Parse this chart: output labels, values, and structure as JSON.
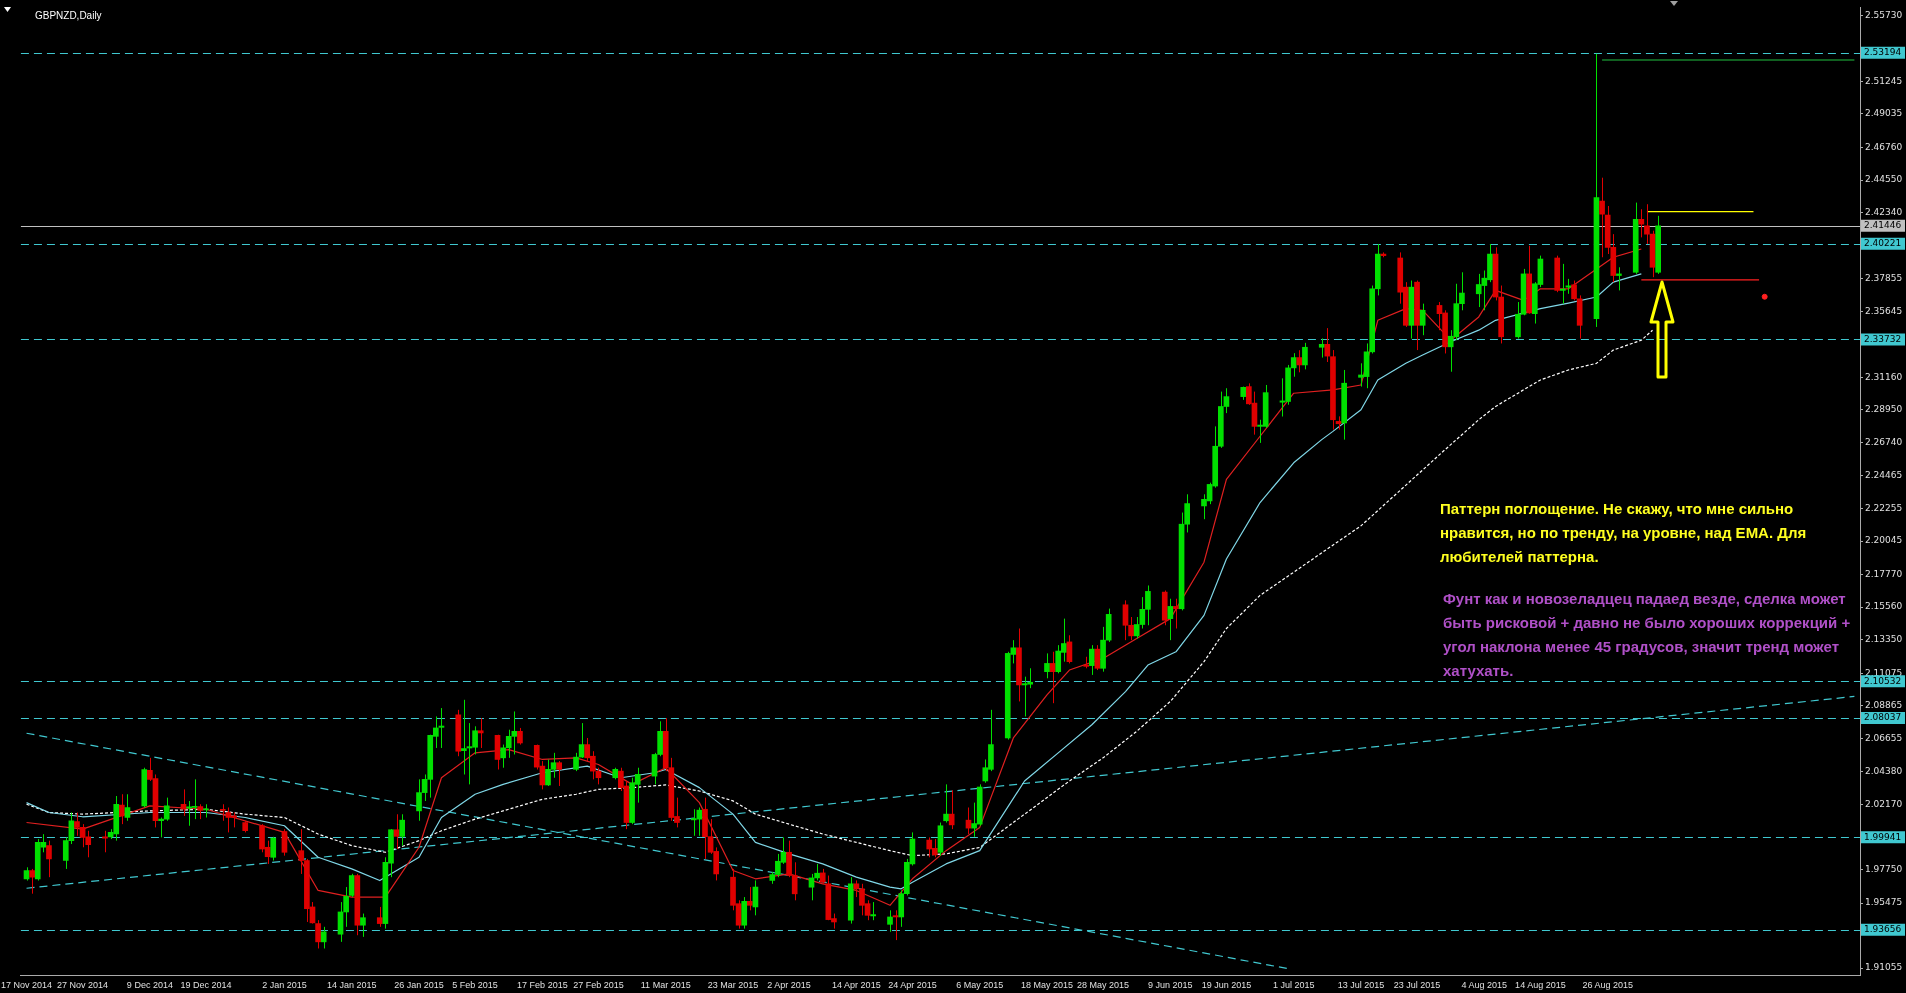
{
  "chart_data": {
    "type": "candlestick",
    "title": "GBPNZD,Daily",
    "annotations": [
      "Паттерн поглощение. Не скажу, что мне сильно нравится, но по тренду, на уровне, над ЕМА. Для любителей паттерна.",
      "Фунт как и новозеладцец падаед везде, сделка может быть рисковой + давно не было хороших коррекций + угол наклона менее 45 градусов, значит тренд может хатухать."
    ],
    "x": [
      "2014-11-17",
      "2014-11-18",
      "2014-11-19",
      "2014-11-20",
      "2014-11-21",
      "2014-11-24",
      "2014-11-25",
      "2014-11-26",
      "2014-11-27",
      "2014-11-28",
      "2014-12-01",
      "2014-12-02",
      "2014-12-03",
      "2014-12-04",
      "2014-12-05",
      "2014-12-08",
      "2014-12-09",
      "2014-12-10",
      "2014-12-11",
      "2014-12-12",
      "2014-12-15",
      "2014-12-16",
      "2014-12-17",
      "2014-12-18",
      "2014-12-19",
      "2014-12-22",
      "2014-12-23",
      "2014-12-24",
      "2014-12-26",
      "2014-12-29",
      "2014-12-30",
      "2014-12-31",
      "2015-01-02",
      "2015-01-05",
      "2015-01-06",
      "2015-01-07",
      "2015-01-08",
      "2015-01-09",
      "2015-01-12",
      "2015-01-13",
      "2015-01-14",
      "2015-01-15",
      "2015-01-16",
      "2015-01-19",
      "2015-01-20",
      "2015-01-21",
      "2015-01-22",
      "2015-01-23",
      "2015-01-26",
      "2015-01-27",
      "2015-01-28",
      "2015-01-29",
      "2015-01-30",
      "2015-02-02",
      "2015-02-03",
      "2015-02-04",
      "2015-02-05",
      "2015-02-06",
      "2015-02-09",
      "2015-02-10",
      "2015-02-11",
      "2015-02-12",
      "2015-02-13",
      "2015-02-16",
      "2015-02-17",
      "2015-02-18",
      "2015-02-19",
      "2015-02-20",
      "2015-02-23",
      "2015-02-24",
      "2015-02-25",
      "2015-02-26",
      "2015-02-27",
      "2015-03-02",
      "2015-03-03",
      "2015-03-04",
      "2015-03-05",
      "2015-03-06",
      "2015-03-09",
      "2015-03-10",
      "2015-03-11",
      "2015-03-12",
      "2015-03-13",
      "2015-03-16",
      "2015-03-17",
      "2015-03-18",
      "2015-03-19",
      "2015-03-20",
      "2015-03-23",
      "2015-03-24",
      "2015-03-25",
      "2015-03-26",
      "2015-03-27",
      "2015-03-30",
      "2015-03-31",
      "2015-04-01",
      "2015-04-02",
      "2015-04-03",
      "2015-04-06",
      "2015-04-07",
      "2015-04-08",
      "2015-04-09",
      "2015-04-10",
      "2015-04-13",
      "2015-04-14",
      "2015-04-15",
      "2015-04-16",
      "2015-04-17",
      "2015-04-20",
      "2015-04-21",
      "2015-04-22",
      "2015-04-23",
      "2015-04-24",
      "2015-04-27",
      "2015-04-28",
      "2015-04-29",
      "2015-04-30",
      "2015-05-01",
      "2015-05-04",
      "2015-05-05",
      "2015-05-06",
      "2015-05-07",
      "2015-05-08",
      "2015-05-11",
      "2015-05-12",
      "2015-05-13",
      "2015-05-14",
      "2015-05-15",
      "2015-05-18",
      "2015-05-19",
      "2015-05-20",
      "2015-05-21",
      "2015-05-22",
      "2015-05-25",
      "2015-05-26",
      "2015-05-27",
      "2015-05-28",
      "2015-05-29",
      "2015-06-01",
      "2015-06-02",
      "2015-06-03",
      "2015-06-04",
      "2015-06-05",
      "2015-06-08",
      "2015-06-09",
      "2015-06-10",
      "2015-06-11",
      "2015-06-12",
      "2015-06-15",
      "2015-06-16",
      "2015-06-17",
      "2015-06-18",
      "2015-06-19",
      "2015-06-22",
      "2015-06-23",
      "2015-06-24",
      "2015-06-25",
      "2015-06-26",
      "2015-06-29",
      "2015-06-30",
      "2015-07-01",
      "2015-07-02",
      "2015-07-03",
      "2015-07-06",
      "2015-07-07",
      "2015-07-08",
      "2015-07-09",
      "2015-07-10",
      "2015-07-13",
      "2015-07-14",
      "2015-07-15",
      "2015-07-16",
      "2015-07-17",
      "2015-07-20",
      "2015-07-21",
      "2015-07-22",
      "2015-07-23",
      "2015-07-24",
      "2015-07-27",
      "2015-07-28",
      "2015-07-29",
      "2015-07-30",
      "2015-07-31",
      "2015-08-03",
      "2015-08-04",
      "2015-08-05",
      "2015-08-06",
      "2015-08-07",
      "2015-08-10",
      "2015-08-11",
      "2015-08-12",
      "2015-08-13",
      "2015-08-14",
      "2015-08-17",
      "2015-08-18",
      "2015-08-19",
      "2015-08-20",
      "2015-08-21",
      "2015-08-24",
      "2015-08-25",
      "2015-08-26",
      "2015-08-27",
      "2015-08-28",
      "2015-08-31",
      "2015-09-01",
      "2015-09-02",
      "2015-09-03",
      "2015-09-04"
    ],
    "ohlc": [
      [
        1.9712,
        1.979,
        1.97,
        1.9768
      ],
      [
        1.9768,
        1.9779,
        1.9611,
        1.9723
      ],
      [
        1.9712,
        1.9982,
        1.97,
        1.9959
      ],
      [
        1.9926,
        2.0015,
        1.9892,
        1.9959
      ],
      [
        1.9937,
        1.9971,
        1.9723,
        1.9847
      ],
      [
        1.9836,
        1.9993,
        1.9779,
        1.9971
      ],
      [
        1.9971,
        2.0162,
        1.9948,
        2.0106
      ],
      [
        2.0101,
        2.0162,
        2.0004,
        2.0061
      ],
      [
        2.0061,
        2.0083,
        1.9926,
        1.9993
      ],
      [
        1.9997,
        2.0038,
        1.9858,
        1.9943
      ],
      [
        1.9997,
        2.0038,
        1.9892,
        1.9988
      ],
      [
        1.9997,
        2.0049,
        1.9982,
        2.0027
      ],
      [
        2.0016,
        2.0274,
        1.9971,
        2.0218
      ],
      [
        2.0213,
        2.0286,
        2.0083,
        2.0139
      ],
      [
        2.0128,
        2.0286,
        2.0106,
        2.0196
      ],
      [
        2.0207,
        2.0466,
        2.0196,
        2.0454
      ],
      [
        2.0448,
        2.0533,
        2.0376,
        2.0387
      ],
      [
        2.0393,
        2.042,
        2.0061,
        2.0106
      ],
      [
        2.0106,
        2.0128,
        1.9993,
        2.0117
      ],
      [
        2.0117,
        2.0263,
        2.0106,
        2.0207
      ],
      [
        2.0218,
        2.0319,
        2.0139,
        2.0184
      ],
      [
        2.0191,
        2.024,
        2.0072,
        2.02
      ],
      [
        2.0196,
        2.0387,
        2.0117,
        2.0204
      ],
      [
        2.0202,
        2.0218,
        2.0117,
        2.0177
      ],
      [
        2.018,
        2.0218,
        2.0128,
        2.0186
      ],
      [
        2.0184,
        2.0218,
        2.0106,
        2.0177
      ],
      [
        2.0162,
        2.0196,
        2.0027,
        2.0128
      ],
      [
        2.0139,
        2.0162,
        2.0061,
        2.0128
      ],
      [
        2.0094,
        2.0106,
        2.0027,
        2.0038
      ],
      [
        2.0072,
        2.0083,
        1.9892,
        1.9914
      ],
      [
        1.9926,
        1.9971,
        1.9813,
        1.9862
      ],
      [
        1.9858,
        1.9997,
        1.9836,
        1.9988
      ],
      [
        2.0033,
        2.0049,
        1.9869,
        1.9892
      ],
      [
        1.9903,
        2.0049,
        1.9745,
        1.9836
      ],
      [
        1.9836,
        1.9847,
        1.9419,
        1.9509
      ],
      [
        1.9521,
        1.9554,
        1.9408,
        1.9413
      ],
      [
        1.9408,
        1.9431,
        1.9239,
        1.9284
      ],
      [
        1.9284,
        1.9386,
        1.9239,
        1.9352
      ],
      [
        1.9336,
        1.9554,
        1.9284,
        1.9487
      ],
      [
        1.9487,
        1.9656,
        1.9386,
        1.9593
      ],
      [
        1.9599,
        1.9746,
        1.9588,
        1.9734
      ],
      [
        1.9734,
        1.9746,
        1.9329,
        1.9397
      ],
      [
        1.9397,
        1.9476,
        1.9318,
        1.9448
      ],
      [
        1.9448,
        1.9521,
        1.9386,
        1.9408
      ],
      [
        1.9408,
        1.9858,
        1.9374,
        1.9824
      ],
      [
        1.9818,
        2.0049,
        1.9723,
        2.0045
      ],
      [
        2.0045,
        2.015,
        1.9914,
        2.0
      ],
      [
        2.0,
        2.015,
        1.9937,
        2.011
      ],
      [
        2.0173,
        2.0387,
        2.0106,
        2.0297
      ],
      [
        2.0297,
        2.042,
        2.024,
        2.0387
      ],
      [
        2.0387,
        2.069,
        2.0263,
        2.0686
      ],
      [
        2.0679,
        2.0814,
        2.06,
        2.0736
      ],
      [
        2.074,
        2.0871,
        2.06,
        2.0749
      ],
      [
        2.0825,
        2.0859,
        2.0544,
        2.0578
      ],
      [
        2.0582,
        2.0927,
        2.042,
        2.0596
      ],
      [
        2.06,
        2.0769,
        2.0353,
        2.0609
      ],
      [
        2.0605,
        2.0747,
        2.0556,
        2.0717
      ],
      [
        2.0717,
        2.0803,
        2.06,
        2.0702
      ],
      [
        2.0686,
        2.069,
        2.0454,
        2.0522
      ],
      [
        2.0533,
        2.0623,
        2.0466,
        2.0601
      ],
      [
        2.0601,
        2.0724,
        2.0533,
        2.0679
      ],
      [
        2.0679,
        2.0848,
        2.0556,
        2.0713
      ],
      [
        2.0713,
        2.0736,
        2.0623,
        2.0634
      ],
      [
        2.0618,
        2.0623,
        2.0454,
        2.047
      ],
      [
        2.0477,
        2.0511,
        2.0319,
        2.0349
      ],
      [
        2.0349,
        2.0522,
        2.0342,
        2.0455
      ],
      [
        2.0455,
        2.0567,
        2.0398,
        2.05
      ],
      [
        2.05,
        2.0511,
        2.0342,
        2.0455
      ],
      [
        2.0455,
        2.0567,
        2.0443,
        2.0538
      ],
      [
        2.0538,
        2.0769,
        2.0533,
        2.0623
      ],
      [
        2.0623,
        2.0668,
        2.0511,
        2.0533
      ],
      [
        2.0544,
        2.0578,
        2.0387,
        2.0443
      ],
      [
        2.0443,
        2.0466,
        2.0353,
        2.0398
      ],
      [
        2.0398,
        2.0466,
        2.0387,
        2.0455
      ],
      [
        2.0443,
        2.0466,
        2.0308,
        2.0331
      ],
      [
        2.0342,
        2.0376,
        2.0049,
        2.0094
      ],
      [
        2.0094,
        2.0398,
        2.0083,
        2.0364
      ],
      [
        2.0353,
        2.0466,
        2.0229,
        2.0421
      ],
      [
        2.0409,
        2.0567,
        2.0353,
        2.0556
      ],
      [
        2.0556,
        2.0781,
        2.0544,
        2.0713
      ],
      [
        2.0713,
        2.0803,
        2.0443,
        2.0466
      ],
      [
        2.0466,
        2.0533,
        2.0106,
        2.0128
      ],
      [
        2.0135,
        2.0263,
        2.0061,
        2.0094
      ],
      [
        2.0112,
        2.0184,
        2.0004,
        2.0121
      ],
      [
        2.0117,
        2.0196,
        2.0004,
        2.0178
      ],
      [
        2.0184,
        2.0263,
        1.9847,
        1.9998
      ],
      [
        1.9998,
        2.0117,
        1.9881,
        1.9892
      ],
      [
        1.9898,
        1.9925,
        1.9701,
        1.9745
      ],
      [
        1.9723,
        1.9779,
        1.9498,
        1.9532
      ],
      [
        1.9543,
        1.9566,
        1.9374,
        1.9397
      ],
      [
        1.9397,
        1.9588,
        1.9374,
        1.9559
      ],
      [
        1.9559,
        1.9656,
        1.9498,
        1.9532
      ],
      [
        1.9521,
        1.9701,
        1.9464,
        1.9656
      ],
      [
        1.9701,
        1.9757,
        1.9678,
        1.9741
      ],
      [
        1.9741,
        1.9881,
        1.9723,
        1.9831
      ],
      [
        1.9824,
        1.9993,
        1.9813,
        1.9892
      ],
      [
        1.9892,
        1.9971,
        1.9723,
        1.9734
      ],
      [
        1.9734,
        1.9824,
        1.9566,
        1.961
      ],
      [
        1.9655,
        1.9745,
        1.9566,
        1.9718
      ],
      [
        1.9718,
        1.9813,
        1.9701,
        1.975
      ],
      [
        1.9752,
        1.9779,
        1.9678,
        1.9689
      ],
      [
        1.9678,
        1.9734,
        1.9431,
        1.9435
      ],
      [
        1.9442,
        1.9476,
        1.9374,
        1.9419
      ],
      [
        1.9431,
        1.9723,
        1.9408,
        1.9678
      ],
      [
        1.9678,
        1.9701,
        1.9588,
        1.9644
      ],
      [
        1.9644,
        1.9678,
        1.9464,
        1.9532
      ],
      [
        1.9543,
        1.9566,
        1.9431,
        1.9464
      ],
      [
        1.946,
        1.9554,
        1.9431,
        1.9469
      ],
      [
        1.9403,
        1.9498,
        1.9352,
        1.9453
      ],
      [
        1.9462,
        1.9498,
        1.9296,
        1.9453
      ],
      [
        1.9453,
        1.9633,
        1.9386,
        1.9611
      ],
      [
        1.9611,
        1.9847,
        1.9599,
        1.9824
      ],
      [
        1.9813,
        2.0027,
        1.9802,
        1.9982
      ],
      [
        1.9975,
        1.9993,
        1.9858,
        1.9914
      ],
      [
        1.9919,
        1.9982,
        1.9858,
        1.9874
      ],
      [
        1.9892,
        2.0094,
        1.9869,
        2.0072
      ],
      [
        2.0106,
        2.0353,
        2.0094,
        2.0151
      ],
      [
        2.0151,
        2.0313,
        2.0049,
        2.0078
      ],
      [
        2.011,
        2.0196,
        2.0016,
        2.0056
      ],
      [
        2.0056,
        2.0229,
        1.9997,
        2.0087
      ],
      [
        2.0083,
        2.0353,
        2.0072,
        2.0335
      ],
      [
        2.0376,
        2.0522,
        2.0364,
        2.0466
      ],
      [
        2.0455,
        2.0859,
        2.0443,
        2.0623
      ],
      [
        2.0668,
        2.1253,
        2.0657,
        2.1242
      ],
      [
        2.1235,
        2.1332,
        2.1174,
        2.128
      ],
      [
        2.128,
        2.1411,
        2.0916,
        2.1028
      ],
      [
        2.1028,
        2.1084,
        2.0814,
        2.1037
      ],
      [
        2.1033,
        2.1141,
        2.1006,
        2.1046
      ],
      [
        2.1118,
        2.1242,
        2.1073,
        2.1174
      ],
      [
        2.1174,
        2.1253,
        2.0904,
        2.1118
      ],
      [
        2.1118,
        2.1298,
        2.1107,
        2.1258
      ],
      [
        2.1249,
        2.1478,
        2.1186,
        2.1309
      ],
      [
        2.132,
        2.1365,
        2.1174,
        2.1186
      ],
      [
        2.1163,
        2.1219,
        2.1141,
        2.1154
      ],
      [
        2.1159,
        2.1298,
        2.1096,
        2.1271
      ],
      [
        2.1271,
        2.1298,
        2.1129,
        2.1141
      ],
      [
        2.1141,
        2.1422,
        2.1118,
        2.1332
      ],
      [
        2.1332,
        2.1546,
        2.132,
        2.1507
      ],
      [
        2.1572,
        2.1602,
        2.1332,
        2.1433
      ],
      [
        2.1433,
        2.1489,
        2.1332,
        2.1361
      ],
      [
        2.1361,
        2.1489,
        2.1343,
        2.1438
      ],
      [
        2.1438,
        2.1624,
        2.1411,
        2.1541
      ],
      [
        2.1541,
        2.1703,
        2.1433,
        2.1663
      ],
      [
        2.1658,
        2.1669,
        2.1433,
        2.1467
      ],
      [
        2.1478,
        2.1613,
        2.1332,
        2.1561
      ],
      [
        2.1561,
        2.1613,
        2.1411,
        2.1545
      ],
      [
        2.1545,
        2.2198,
        2.1534,
        2.2119
      ],
      [
        2.2119,
        2.2322,
        2.2063,
        2.2259
      ],
      [
        2.2243,
        2.2322,
        2.2153,
        2.2288
      ],
      [
        2.2277,
        2.2401,
        2.2255,
        2.2389
      ],
      [
        2.2378,
        2.2783,
        2.2367,
        2.2648
      ],
      [
        2.2648,
        2.3019,
        2.2637,
        2.2918
      ],
      [
        2.2918,
        2.3042,
        2.2873,
        2.2985
      ],
      [
        2.2985,
        2.3053,
        2.2963,
        2.3048
      ],
      [
        2.3053,
        2.3075,
        2.2929,
        2.2936
      ],
      [
        2.2941,
        2.3019,
        2.2727,
        2.2783
      ],
      [
        2.2783,
        2.2828,
        2.2671,
        2.2792
      ],
      [
        2.2783,
        2.3064,
        2.2772,
        2.3012
      ],
      [
        2.2947,
        2.3109,
        2.285,
        2.2956
      ],
      [
        2.2952,
        2.32,
        2.293,
        2.318
      ],
      [
        2.318,
        2.328,
        2.312,
        2.325
      ],
      [
        2.325,
        2.33,
        2.315,
        2.32
      ],
      [
        2.32,
        2.335,
        2.317,
        2.332
      ],
      [
        2.332,
        2.338,
        2.325,
        2.334
      ],
      [
        2.334,
        2.345,
        2.322,
        2.326
      ],
      [
        2.3256,
        2.3301,
        2.2761,
        2.2828
      ],
      [
        2.2817,
        2.2851,
        2.2761,
        2.2801
      ],
      [
        2.2806,
        2.3166,
        2.2693,
        2.3076
      ],
      [
        2.3116,
        2.3211,
        2.3053,
        2.3132
      ],
      [
        2.3121,
        2.3346,
        2.3042,
        2.3289
      ],
      [
        2.3289,
        2.3739,
        2.3278,
        2.3717
      ],
      [
        2.3717,
        2.4021,
        2.3672,
        2.3953
      ],
      [
        2.3953,
        2.3964,
        2.3931,
        2.3942
      ],
      [
        2.3926,
        2.3964,
        2.3616,
        2.3694
      ],
      [
        2.3728,
        2.3762,
        2.3458,
        2.3469
      ],
      [
        2.3469,
        2.3773,
        2.3379,
        2.3728
      ],
      [
        2.3762,
        2.3773,
        2.3301,
        2.3469
      ],
      [
        2.3469,
        2.3616,
        2.3402,
        2.3571
      ],
      [
        2.3604,
        2.3627,
        2.3436,
        2.3548
      ],
      [
        2.3553,
        2.3571,
        2.3278,
        2.3323
      ],
      [
        2.3323,
        2.3436,
        2.3154,
        2.3395
      ],
      [
        2.3391,
        2.3751,
        2.3368,
        2.3616
      ],
      [
        2.3616,
        2.3829,
        2.3571,
        2.3688
      ],
      [
        2.3683,
        2.3818,
        2.3593,
        2.3746
      ],
      [
        2.3739,
        2.3841,
        2.3571,
        2.3789
      ],
      [
        2.3778,
        2.4021,
        2.3762,
        2.3953
      ],
      [
        2.3953,
        2.3998,
        2.3638,
        2.3661
      ],
      [
        2.3661,
        2.3739,
        2.3346,
        2.3391
      ],
      [
        2.3391,
        2.3627,
        2.3379,
        2.3544
      ],
      [
        2.3544,
        2.3852,
        2.3537,
        2.3818
      ],
      [
        2.3818,
        2.4009,
        2.3548,
        2.3553
      ],
      [
        2.3548,
        2.3762,
        2.3481,
        2.3751
      ],
      [
        2.3746,
        2.3942,
        2.3728,
        2.3919
      ],
      [
        2.3926,
        2.3942,
        2.3694,
        2.3706
      ],
      [
        2.3706,
        2.3886,
        2.3616,
        2.3715
      ],
      [
        2.3728,
        2.3784,
        2.3683,
        2.3737
      ],
      [
        2.3744,
        2.3773,
        2.3638,
        2.3649
      ],
      [
        2.3649,
        2.3672,
        2.3379,
        2.3469
      ],
      [
        2.3514,
        2.5312,
        2.3458,
        2.4336
      ],
      [
        2.4313,
        2.4471,
        2.3931,
        2.4223
      ],
      [
        2.4218,
        2.4279,
        2.3953,
        2.3998
      ],
      [
        2.3998,
        2.4088,
        2.3762,
        2.3807
      ],
      [
        2.3807,
        2.3863,
        2.3706,
        2.3818
      ],
      [
        2.3829,
        2.4302,
        2.3818,
        2.4189
      ],
      [
        2.4189,
        2.4257,
        2.4066,
        2.4156
      ],
      [
        2.4144,
        2.4291,
        2.4021,
        2.4088
      ],
      [
        2.4088,
        2.4111,
        2.3796,
        2.3863
      ],
      [
        2.3829,
        2.4212,
        2.3818,
        2.4144
      ]
    ],
    "colors": [
      "#00e000",
      "#e00000",
      "#00e000",
      "#00e000",
      "#e00000",
      "#00e000",
      "#00e000",
      "#e00000",
      "#e00000",
      "#e00000",
      "#e00000",
      "#00e000",
      "#00e000",
      "#e00000",
      "#00e000",
      "#00e000",
      "#e00000",
      "#e00000",
      "#00e000",
      "#00e000",
      "#e00000",
      "#00e000",
      "#00e000",
      "#e00000",
      "#00e000",
      "#e00000",
      "#e00000",
      "#e00000",
      "#e00000",
      "#e00000",
      "#e00000",
      "#00e000",
      "#e00000",
      "#e00000",
      "#e00000",
      "#e00000",
      "#e00000",
      "#00e000",
      "#00e000",
      "#00e000",
      "#00e000",
      "#e00000",
      "#00e000",
      "#e00000",
      "#00e000",
      "#00e000",
      "#e00000",
      "#00e000",
      "#00e000",
      "#00e000",
      "#00e000",
      "#00e000",
      "#00e000",
      "#e00000",
      "#00e000",
      "#00e000",
      "#00e000",
      "#e00000",
      "#e00000",
      "#00e000",
      "#00e000",
      "#00e000",
      "#e00000",
      "#e00000",
      "#e00000",
      "#00e000",
      "#00e000",
      "#e00000",
      "#00e000",
      "#00e000",
      "#e00000",
      "#e00000",
      "#e00000",
      "#00e000",
      "#e00000",
      "#e00000",
      "#00e000",
      "#00e000",
      "#00e000",
      "#00e000",
      "#e00000",
      "#e00000",
      "#e00000",
      "#00e000",
      "#00e000",
      "#e00000",
      "#e00000",
      "#e00000",
      "#e00000",
      "#e00000",
      "#00e000",
      "#e00000",
      "#00e000",
      "#00e000",
      "#00e000",
      "#00e000",
      "#e00000",
      "#e00000",
      "#00e000",
      "#00e000",
      "#e00000",
      "#e00000",
      "#e00000",
      "#00e000",
      "#e00000",
      "#e00000",
      "#e00000",
      "#00e000",
      "#00e000",
      "#e00000",
      "#00e000",
      "#00e000",
      "#00e000",
      "#e00000",
      "#e00000",
      "#00e000",
      "#00e000",
      "#e00000",
      "#e00000",
      "#00e000",
      "#00e000",
      "#00e000",
      "#00e000",
      "#00e000",
      "#00e000",
      "#e00000",
      "#00e000",
      "#00e000",
      "#00e000",
      "#e00000",
      "#00e000",
      "#00e000",
      "#e00000",
      "#e00000",
      "#00e000",
      "#e00000",
      "#00e000",
      "#00e000",
      "#e00000",
      "#e00000",
      "#00e000",
      "#00e000",
      "#00e000",
      "#e00000",
      "#00e000",
      "#e00000",
      "#00e000",
      "#00e000",
      "#00e000",
      "#00e000",
      "#00e000",
      "#00e000",
      "#00e000",
      "#00e000",
      "#e00000",
      "#e00000",
      "#00e000",
      "#00e000",
      "#00e000",
      "#00e000",
      "#00e000",
      "#e00000",
      "#00e000",
      "#00e000",
      "#e00000",
      "#e00000",
      "#e00000",
      "#00e000",
      "#00e000",
      "#00e000",
      "#00e000",
      "#00e000",
      "#e00000",
      "#e00000",
      "#e00000",
      "#00e000",
      "#e00000",
      "#00e000",
      "#e00000",
      "#e00000",
      "#00e000",
      "#00e000",
      "#00e000",
      "#00e000",
      "#00e000",
      "#00e000",
      "#e00000",
      "#e00000",
      "#00e000",
      "#00e000",
      "#e00000",
      "#00e000",
      "#00e000",
      "#e00000",
      "#00e000",
      "#00e000",
      "#e00000",
      "#e00000",
      "#00e000",
      "#e00000",
      "#e00000",
      "#e00000",
      "#00e000",
      "#00e000",
      "#e00000",
      "#e00000",
      "#e00000",
      "#00e000"
    ],
    "series": [
      {
        "type": "line",
        "color": "#e02020",
        "line_style": "solid",
        "marker": "none",
        "x": [
          "2014-11-17",
          "2014-11-27",
          "2014-12-09",
          "2014-12-19",
          "2015-01-02",
          "2015-01-08",
          "2015-01-14",
          "2015-01-20",
          "2015-01-26",
          "2015-01-30",
          "2015-02-05",
          "2015-02-11",
          "2015-02-17",
          "2015-02-23",
          "2015-02-27",
          "2015-03-05",
          "2015-03-11",
          "2015-03-17",
          "2015-03-23",
          "2015-03-27",
          "2015-04-02",
          "2015-04-08",
          "2015-04-14",
          "2015-04-20",
          "2015-04-24",
          "2015-04-30",
          "2015-05-06",
          "2015-05-12",
          "2015-05-18",
          "2015-05-22",
          "2015-05-28",
          "2015-06-03",
          "2015-06-09",
          "2015-06-15",
          "2015-06-19",
          "2015-06-25",
          "2015-07-01",
          "2015-07-08",
          "2015-07-13",
          "2015-07-16",
          "2015-07-21",
          "2015-07-24",
          "2015-07-29",
          "2015-08-03",
          "2015-08-06",
          "2015-08-11",
          "2015-08-14",
          "2015-08-19",
          "2015-08-27",
          "2015-09-01"
        ],
        "values": [
          2.0094,
          2.0049,
          2.0207,
          2.0184,
          2.0027,
          1.9633,
          1.9588,
          1.9588,
          1.9926,
          2.0398,
          2.0567,
          2.0589,
          2.0522,
          2.0533,
          2.0488,
          2.0353,
          2.0466,
          2.0229,
          1.9768,
          1.9712,
          1.9745,
          1.9678,
          1.9633,
          1.9532,
          1.9712,
          1.9903,
          2.0061,
          2.0668,
          2.0961,
          2.1129,
          2.1208,
          2.1343,
          2.1478,
          2.1861,
          2.2423,
          2.2716,
          2.3008,
          2.3031,
          2.3064,
          2.3503,
          2.3582,
          2.3571,
          2.3368,
          2.3526,
          2.3706,
          2.3638,
          2.3717,
          2.3717,
          2.3931,
          2.3987
        ]
      },
      {
        "type": "line",
        "color": "#80d8e8",
        "line_style": "solid",
        "marker": "none",
        "x": [
          "2014-11-17",
          "2014-11-21",
          "2014-11-27",
          "2014-12-09",
          "2014-12-19",
          "2014-12-26",
          "2015-01-02",
          "2015-01-08",
          "2015-01-14",
          "2015-01-19",
          "2015-01-26",
          "2015-01-30",
          "2015-02-05",
          "2015-02-10",
          "2015-02-17",
          "2015-02-25",
          "2015-03-03",
          "2015-03-09",
          "2015-03-11",
          "2015-03-17",
          "2015-03-23",
          "2015-03-27",
          "2015-04-02",
          "2015-04-08",
          "2015-04-14",
          "2015-04-20",
          "2015-04-22",
          "2015-04-24",
          "2015-04-30",
          "2015-05-06",
          "2015-05-14",
          "2015-05-20",
          "2015-05-26",
          "2015-06-01",
          "2015-06-05",
          "2015-06-10",
          "2015-06-15",
          "2015-06-19",
          "2015-06-25",
          "2015-07-01",
          "2015-07-06",
          "2015-07-08",
          "2015-07-13",
          "2015-07-16",
          "2015-07-21",
          "2015-07-24",
          "2015-07-29",
          "2015-08-03",
          "2015-08-06",
          "2015-08-14",
          "2015-08-19",
          "2015-08-24",
          "2015-08-27",
          "2015-09-01"
        ],
        "values": [
          2.0229,
          2.0162,
          2.0133,
          2.0162,
          2.0162,
          2.0128,
          2.0072,
          1.9858,
          1.9779,
          1.97,
          1.9858,
          2.0128,
          2.0286,
          2.0353,
          2.0432,
          2.0477,
          2.0398,
          2.0432,
          2.0454,
          2.0331,
          2.0151,
          1.9959,
          1.9881,
          1.9813,
          1.9723,
          1.9656,
          1.9644,
          1.9689,
          1.9813,
          1.9903,
          2.0376,
          2.0567,
          2.0758,
          2.0983,
          2.1163,
          2.1253,
          2.15,
          2.1883,
          2.2266,
          2.2536,
          2.2693,
          2.2749,
          2.2896,
          2.3098,
          2.3211,
          2.3267,
          2.3357,
          2.3436,
          2.3503,
          2.3582,
          2.362,
          2.3661,
          2.3762,
          2.3818
        ]
      },
      {
        "type": "line",
        "color": "#ffffff",
        "line_style": "dotted",
        "marker": "none",
        "x": [
          "2014-11-17",
          "2014-11-21",
          "2014-11-27",
          "2014-12-09",
          "2014-12-19",
          "2014-12-26",
          "2015-01-02",
          "2015-01-08",
          "2015-01-14",
          "2015-01-20",
          "2015-01-26",
          "2015-01-30",
          "2015-02-05",
          "2015-02-10",
          "2015-02-17",
          "2015-02-23",
          "2015-02-27",
          "2015-03-05",
          "2015-03-11",
          "2015-03-17",
          "2015-03-23",
          "2015-03-27",
          "2015-04-02",
          "2015-04-08",
          "2015-04-14",
          "2015-04-20",
          "2015-04-24",
          "2015-04-30",
          "2015-05-06",
          "2015-05-22",
          "2015-05-28",
          "2015-06-03",
          "2015-06-09",
          "2015-06-15",
          "2015-06-19",
          "2015-06-25",
          "2015-07-01",
          "2015-07-07",
          "2015-07-13",
          "2015-07-28",
          "2015-08-03",
          "2015-08-06",
          "2015-08-11",
          "2015-08-14",
          "2015-08-19",
          "2015-08-24",
          "2015-08-27",
          "2015-09-01",
          "2015-09-03"
        ],
        "values": [
          2.0218,
          2.0162,
          2.0151,
          2.0173,
          2.0184,
          2.0151,
          2.0128,
          2.0016,
          1.9937,
          1.9892,
          1.9971,
          2.0038,
          2.0117,
          2.0173,
          2.0252,
          2.0286,
          2.0319,
          2.0331,
          2.0349,
          2.0308,
          2.0241,
          2.0151,
          2.0083,
          2.0016,
          1.9959,
          1.9903,
          1.9869,
          1.9881,
          1.9925,
          2.0376,
          2.0533,
          2.0713,
          2.0916,
          2.1186,
          2.1411,
          2.1636,
          2.1793,
          2.1951,
          2.2108,
          2.2625,
          2.2828,
          2.2918,
          2.3031,
          2.3098,
          2.3166,
          2.3211,
          2.3301,
          2.3368,
          2.3436
        ]
      },
      {
        "type": "line",
        "color": "#40c8d0",
        "line_style": "dashed",
        "marker": "none",
        "x": [
          "2014-11-17",
          "2015-06-30"
        ],
        "values": [
          2.07,
          1.9102
        ]
      },
      {
        "type": "line",
        "color": "#40c8d0",
        "line_style": "dashed",
        "marker": "none",
        "x": [
          "2014-11-17",
          "2015-10-09"
        ],
        "values": [
          1.9648,
          2.095
        ]
      },
      {
        "type": "line",
        "color": "#20c040",
        "line_style": "solid",
        "marker": "none",
        "x": [
          "2015-08-25",
          "2015-10-09"
        ],
        "values": [
          2.527,
          2.527
        ]
      },
      {
        "type": "line",
        "color": "#ffff00",
        "line_style": "solid",
        "marker": "none",
        "x": [
          "2015-09-02",
          "2015-09-21"
        ],
        "values": [
          2.4241,
          2.4241
        ]
      },
      {
        "type": "line",
        "color": "#ff2020",
        "line_style": "solid",
        "marker": "none",
        "x": [
          "2015-09-01",
          "2015-09-22"
        ],
        "values": [
          2.3777,
          2.3777
        ]
      },
      {
        "type": "scatter",
        "color": "#ff2020",
        "marker": "circle",
        "x": [
          "2015-09-23"
        ],
        "values": [
          2.3663
        ]
      }
    ],
    "ref_lines": [
      {
        "axis": "y",
        "value": 2.53194,
        "label": "2.53194",
        "color": "#40c8d0",
        "line_style": "dashed"
      },
      {
        "axis": "y",
        "value": 2.41446,
        "label": "2.41446",
        "color": "#c0c0c0",
        "line_style": "solid"
      },
      {
        "axis": "y",
        "value": 2.40221,
        "label": "2.40221",
        "color": "#40c8d0",
        "line_style": "dashed"
      },
      {
        "axis": "y",
        "value": 2.33732,
        "label": "2.33732",
        "color": "#40c8d0",
        "line_style": "dashed"
      },
      {
        "axis": "y",
        "value": 2.10532,
        "label": "2.10532",
        "color": "#40c8d0",
        "line_style": "dashed"
      },
      {
        "axis": "y",
        "value": 2.08037,
        "label": "2.08037",
        "color": "#40c8d0",
        "line_style": "dashed"
      },
      {
        "axis": "y",
        "value": 1.99941,
        "label": "1.99941",
        "color": "#40c8d0",
        "line_style": "dashed"
      },
      {
        "axis": "y",
        "value": 1.93656,
        "label": "1.93656",
        "color": "#40c8d0",
        "line_style": "dashed"
      }
    ],
    "xlim": [
      "2014-11-16",
      "2015-10-10"
    ],
    "xticks": [
      {
        "value": "2014-11-17",
        "label": "17 Nov 2014"
      },
      {
        "value": "2014-11-27",
        "label": "27 Nov 2014"
      },
      {
        "value": "2014-12-09",
        "label": "9 Dec 2014"
      },
      {
        "value": "2014-12-19",
        "label": "19 Dec 2014"
      },
      {
        "value": "2015-01-02",
        "label": "2 Jan 2015"
      },
      {
        "value": "2015-01-14",
        "label": "14 Jan 2015"
      },
      {
        "value": "2015-01-26",
        "label": "26 Jan 2015"
      },
      {
        "value": "2015-02-05",
        "label": "5 Feb 2015"
      },
      {
        "value": "2015-02-17",
        "label": "17 Feb 2015"
      },
      {
        "value": "2015-02-27",
        "label": "27 Feb 2015"
      },
      {
        "value": "2015-03-11",
        "label": "11 Mar 2015"
      },
      {
        "value": "2015-03-23",
        "label": "23 Mar 2015"
      },
      {
        "value": "2015-04-02",
        "label": "2 Apr 2015"
      },
      {
        "value": "2015-04-14",
        "label": "14 Apr 2015"
      },
      {
        "value": "2015-04-24",
        "label": "24 Apr 2015"
      },
      {
        "value": "2015-05-06",
        "label": "6 May 2015"
      },
      {
        "value": "2015-05-18",
        "label": "18 May 2015"
      },
      {
        "value": "2015-05-28",
        "label": "28 May 2015"
      },
      {
        "value": "2015-06-09",
        "label": "9 Jun 2015"
      },
      {
        "value": "2015-06-19",
        "label": "19 Jun 2015"
      },
      {
        "value": "2015-07-01",
        "label": "1 Jul 2015"
      },
      {
        "value": "2015-07-13",
        "label": "13 Jul 2015"
      },
      {
        "value": "2015-07-23",
        "label": "23 Jul 2015"
      },
      {
        "value": "2015-08-04",
        "label": "4 Aug 2015"
      },
      {
        "value": "2015-08-14",
        "label": "14 Aug 2015"
      },
      {
        "value": "2015-08-26",
        "label": "26 Aug 2015"
      }
    ],
    "ylim": [
      1.9059,
      2.5627
    ],
    "yticks": [
      {
        "value": 2.5573,
        "label": "2.55730"
      },
      {
        "value": 2.51245,
        "label": "2.51245"
      },
      {
        "value": 2.49035,
        "label": "2.49035"
      },
      {
        "value": 2.4676,
        "label": "2.46760"
      },
      {
        "value": 2.4455,
        "label": "2.44550"
      },
      {
        "value": 2.4234,
        "label": "2.42340"
      },
      {
        "value": 2.37855,
        "label": "2.37855"
      },
      {
        "value": 2.35645,
        "label": "2.35645"
      },
      {
        "value": 2.3116,
        "label": "2.31160"
      },
      {
        "value": 2.2895,
        "label": "2.28950"
      },
      {
        "value": 2.2674,
        "label": "2.26740"
      },
      {
        "value": 2.24465,
        "label": "2.24465"
      },
      {
        "value": 2.22255,
        "label": "2.22255"
      },
      {
        "value": 2.20045,
        "label": "2.20045"
      },
      {
        "value": 2.1777,
        "label": "2.17770"
      },
      {
        "value": 2.1556,
        "label": "2.15560"
      },
      {
        "value": 2.1335,
        "label": "2.13350"
      },
      {
        "value": 2.11075,
        "label": "2.11075"
      },
      {
        "value": 2.08865,
        "label": "2.08865"
      },
      {
        "value": 2.06655,
        "label": "2.06655"
      },
      {
        "value": 2.0438,
        "label": "2.04380"
      },
      {
        "value": 2.0217,
        "label": "2.02170"
      },
      {
        "value": 1.9775,
        "label": "1.97750"
      },
      {
        "value": 1.95475,
        "label": "1.95475"
      },
      {
        "value": 1.91055,
        "label": "1.91055"
      }
    ],
    "grid": false,
    "legend": false
  }
}
